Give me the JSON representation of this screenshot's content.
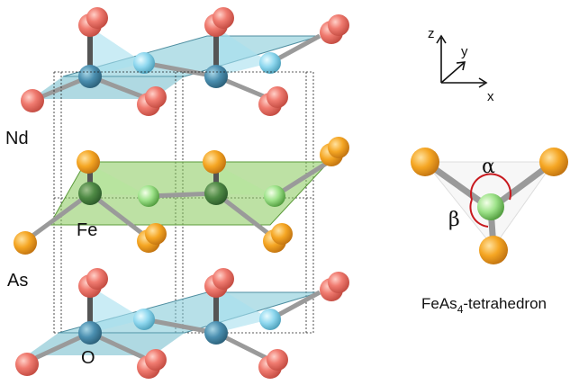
{
  "labels": {
    "nd": "Nd",
    "fe": "Fe",
    "as": "As",
    "o": "O"
  },
  "axes": {
    "z": "z",
    "y": "y",
    "x": "x"
  },
  "tetrahedron": {
    "alpha": "α",
    "beta": "β",
    "caption_main": "FeAs",
    "caption_sub": "4",
    "caption_rest": "-tetrahedron"
  },
  "colors": {
    "nd_atom": "#f07b70",
    "o_atom": "#8fd8ef",
    "fe_atom": "#9ee38a",
    "as_atom": "#f5a623",
    "rare_earth_layer": "#7cc6d6",
    "fe_layer": "#86c95a",
    "bond": "#9a9a9a",
    "angle_arc": "#c8191e"
  }
}
